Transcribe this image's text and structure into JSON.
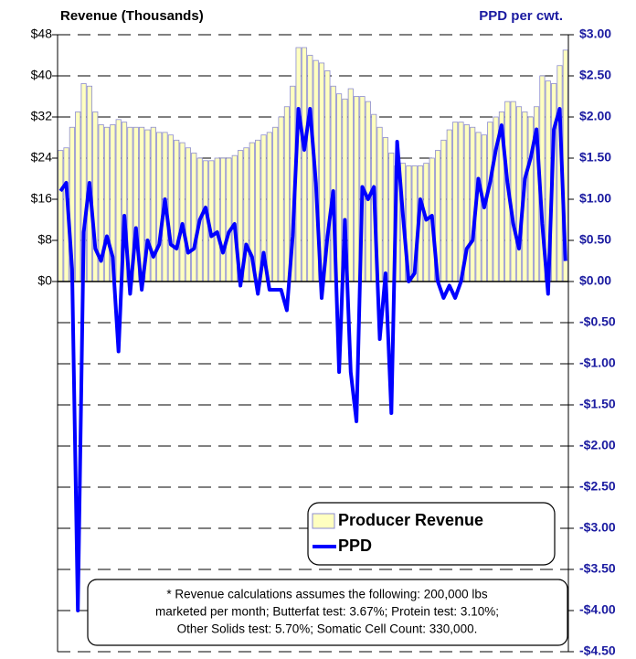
{
  "chart_data": {
    "type": "bar",
    "title": "Revenue (Thousands)",
    "y2_title": "PPD per cwt.",
    "categories": [
      null,
      null,
      null,
      null,
      null,
      null,
      null,
      null,
      null,
      null,
      null,
      null,
      null,
      null,
      null,
      null,
      null,
      null,
      null,
      null,
      null,
      null,
      null,
      null,
      null,
      null,
      null,
      null,
      null,
      null,
      null,
      null,
      null,
      null,
      null,
      null,
      null,
      null,
      null,
      null,
      null,
      null,
      null,
      null,
      null,
      null,
      null,
      null,
      null,
      null,
      null,
      null,
      null,
      null,
      null,
      null,
      null,
      null,
      null,
      null,
      null,
      null,
      null,
      null,
      null,
      null,
      null,
      null,
      null,
      null,
      null,
      null,
      null,
      null,
      null,
      null,
      null,
      null,
      null,
      null,
      null,
      null,
      null,
      null,
      null,
      null,
      null,
      null
    ],
    "series": [
      {
        "name": "Producer Revenue",
        "type": "bar",
        "color": "#ffffc0",
        "axis": "y",
        "values": [
          25.5,
          26,
          30,
          33,
          38.5,
          38,
          33,
          30.5,
          30,
          30.5,
          31.5,
          31,
          30,
          30,
          30,
          29.5,
          30,
          29,
          29,
          28.5,
          27.5,
          27,
          26,
          25,
          24,
          23.5,
          23.5,
          24,
          24,
          24,
          24.5,
          25.5,
          26,
          27,
          27.5,
          28.5,
          29,
          30,
          32,
          34,
          38,
          45.5,
          45.5,
          44,
          43,
          42.5,
          41,
          38,
          36.5,
          35.5,
          37.5,
          36,
          36,
          35,
          32.5,
          30,
          28,
          25,
          22.5,
          23,
          22.5,
          22.5,
          22.5,
          23,
          24,
          25.5,
          27.5,
          29.5,
          31,
          31,
          30.5,
          30,
          29,
          28.5,
          31,
          32,
          33,
          35,
          35,
          34,
          33,
          32,
          34,
          40,
          39,
          38.5,
          42,
          45
        ]
      },
      {
        "name": "PPD",
        "type": "line",
        "color": "#0000ff",
        "axis": "y2",
        "values": [
          1.1,
          1.2,
          0.15,
          -4.0,
          0.6,
          1.2,
          0.4,
          0.25,
          0.55,
          0.3,
          -0.85,
          0.8,
          -0.15,
          0.65,
          -0.1,
          0.5,
          0.3,
          0.45,
          1.0,
          0.45,
          0.4,
          0.7,
          0.35,
          0.4,
          0.75,
          0.9,
          0.55,
          0.6,
          0.35,
          0.6,
          0.7,
          -0.05,
          0.45,
          0.3,
          -0.15,
          0.35,
          -0.1,
          -0.1,
          -0.1,
          -0.35,
          0.55,
          2.1,
          1.6,
          2.1,
          1.2,
          -0.2,
          0.55,
          1.1,
          -1.1,
          0.75,
          -1.1,
          -1.7,
          1.15,
          1.0,
          1.15,
          -0.7,
          0.1,
          -1.6,
          1.7,
          0.8,
          0.0,
          0.1,
          1.0,
          0.75,
          0.8,
          0.0,
          -0.2,
          -0.05,
          -0.2,
          0.0,
          0.4,
          0.5,
          1.25,
          0.9,
          1.2,
          1.6,
          1.9,
          1.2,
          0.7,
          0.4,
          1.25,
          1.5,
          1.85,
          0.7,
          -0.15,
          1.85,
          2.1,
          0.25
        ]
      }
    ],
    "ylim": [
      -72,
      48
    ],
    "yticks": [
      {
        "value": 0,
        "label": "$0"
      },
      {
        "value": 8,
        "label": "$8"
      },
      {
        "value": 16,
        "label": "$16"
      },
      {
        "value": 24,
        "label": "$24"
      },
      {
        "value": 32,
        "label": "$32"
      },
      {
        "value": 40,
        "label": "$40"
      },
      {
        "value": 48,
        "label": "$48"
      }
    ],
    "y2lim": [
      -4.5,
      3
    ],
    "y2ticks": [
      {
        "value": -4.5,
        "label": "-$4.50"
      },
      {
        "value": -4,
        "label": "-$4.00"
      },
      {
        "value": -3.5,
        "label": "-$3.50"
      },
      {
        "value": -3,
        "label": "-$3.00"
      },
      {
        "value": -2.5,
        "label": "-$2.50"
      },
      {
        "value": -2,
        "label": "-$2.00"
      },
      {
        "value": -1.5,
        "label": "-$1.50"
      },
      {
        "value": -1,
        "label": "-$1.00"
      },
      {
        "value": -0.5,
        "label": "-$0.50"
      },
      {
        "value": 0,
        "label": "$0.00"
      },
      {
        "value": 0.5,
        "label": "$0.50"
      },
      {
        "value": 1,
        "label": "$1.00"
      },
      {
        "value": 1.5,
        "label": "$1.50"
      },
      {
        "value": 2,
        "label": "$2.00"
      },
      {
        "value": 2.5,
        "label": "$2.50"
      },
      {
        "value": 3,
        "label": "$3.00"
      }
    ],
    "grid": true,
    "legend": "lower right",
    "note": [
      "* Revenue calculations assumes the following:  200,000 lbs",
      "marketed per month;  Butterfat test: 3.67%;  Protein test: 3.10%;",
      "Other Solids test: 5.70%;  Somatic Cell Count: 330,000."
    ]
  }
}
